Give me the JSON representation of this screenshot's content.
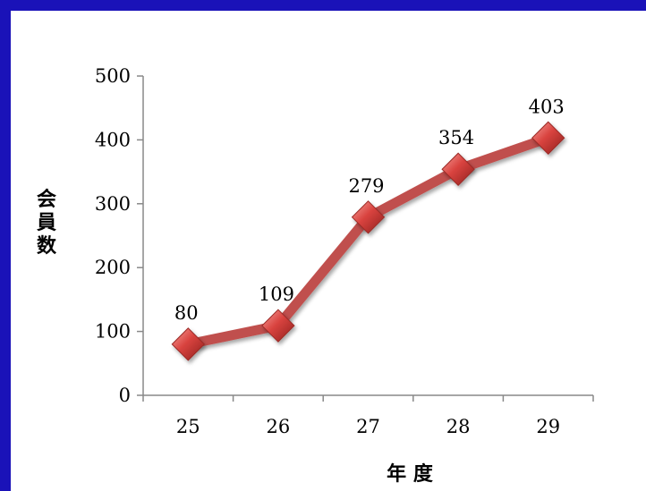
{
  "chart_data": {
    "type": "line",
    "categories": [
      "25",
      "26",
      "27",
      "28",
      "29"
    ],
    "series": [
      {
        "values": [
          80,
          109,
          279,
          354,
          403
        ]
      }
    ],
    "title": "",
    "xlabel": "年 度",
    "ylabel": "会員数",
    "ylabel_chars": [
      "会",
      "員",
      "数"
    ],
    "ylim": [
      0,
      500
    ],
    "yticks": [
      "0",
      "100",
      "200",
      "300",
      "400",
      "500"
    ],
    "yticks_values": [
      0,
      100,
      200,
      300,
      400,
      500
    ],
    "data_labels": [
      "80",
      "109",
      "279",
      "354",
      "403"
    ],
    "grid": false,
    "legend": "none",
    "line_color": "#c0504d",
    "marker": "diamond",
    "marker_color": "#d9433f"
  },
  "colors": {
    "background_frame": "#1a12b8",
    "plot_background": "#ffffff"
  }
}
